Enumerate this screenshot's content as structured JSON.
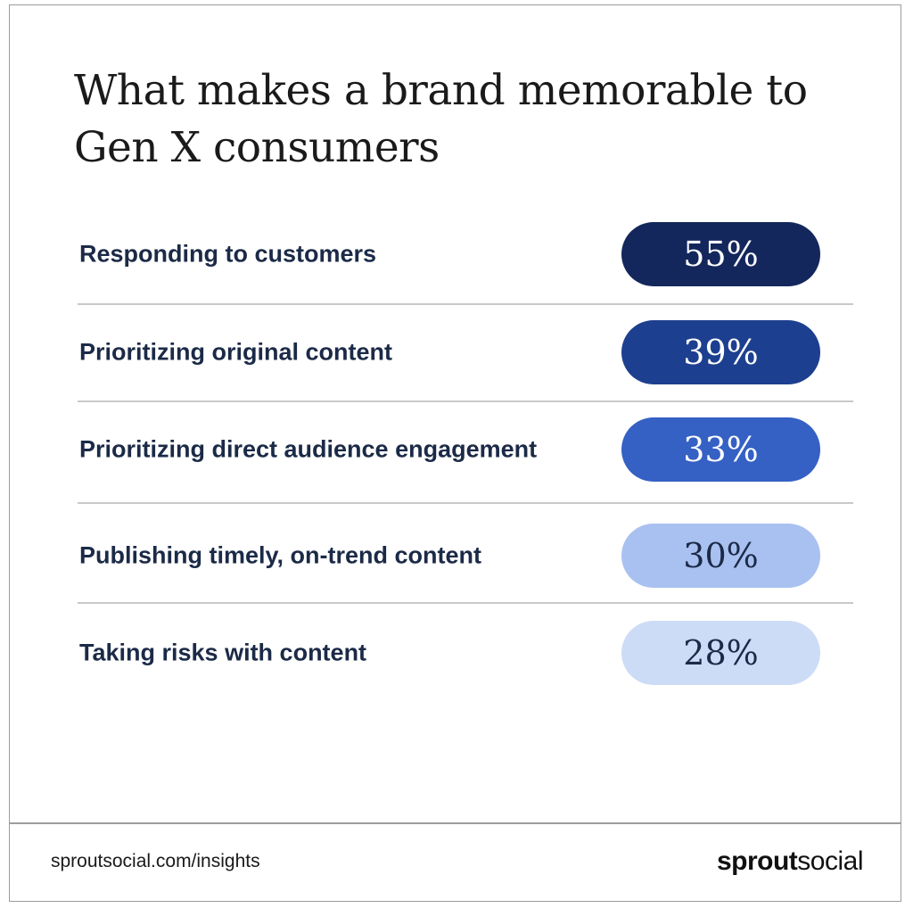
{
  "title": "What makes a brand memorable to Gen X consumers",
  "chart_data": {
    "type": "table",
    "title": "What makes a brand memorable to Gen X consumers",
    "categories": [
      "Responding to customers",
      "Prioritizing original content",
      "Prioritizing direct audience engagement",
      "Publishing timely, on-trend content",
      "Taking risks with content"
    ],
    "values": [
      55,
      39,
      33,
      30,
      28
    ],
    "value_labels": [
      "55%",
      "39%",
      "33%",
      "30%",
      "28%"
    ],
    "unit": "%",
    "colors": {
      "pill_fill": [
        "#14275c",
        "#1d3f8f",
        "#3560c4",
        "#a9c1f0",
        "#cddcf6"
      ],
      "pill_text": [
        "#ffffff",
        "#ffffff",
        "#ffffff",
        "#1b2a47",
        "#1b2a47"
      ],
      "label_text": "#1b2a47",
      "divider": "#c9c9c9"
    }
  },
  "footer": {
    "url": "sproutsocial.com/insights",
    "logo_bold": "sprout",
    "logo_light": "social"
  }
}
